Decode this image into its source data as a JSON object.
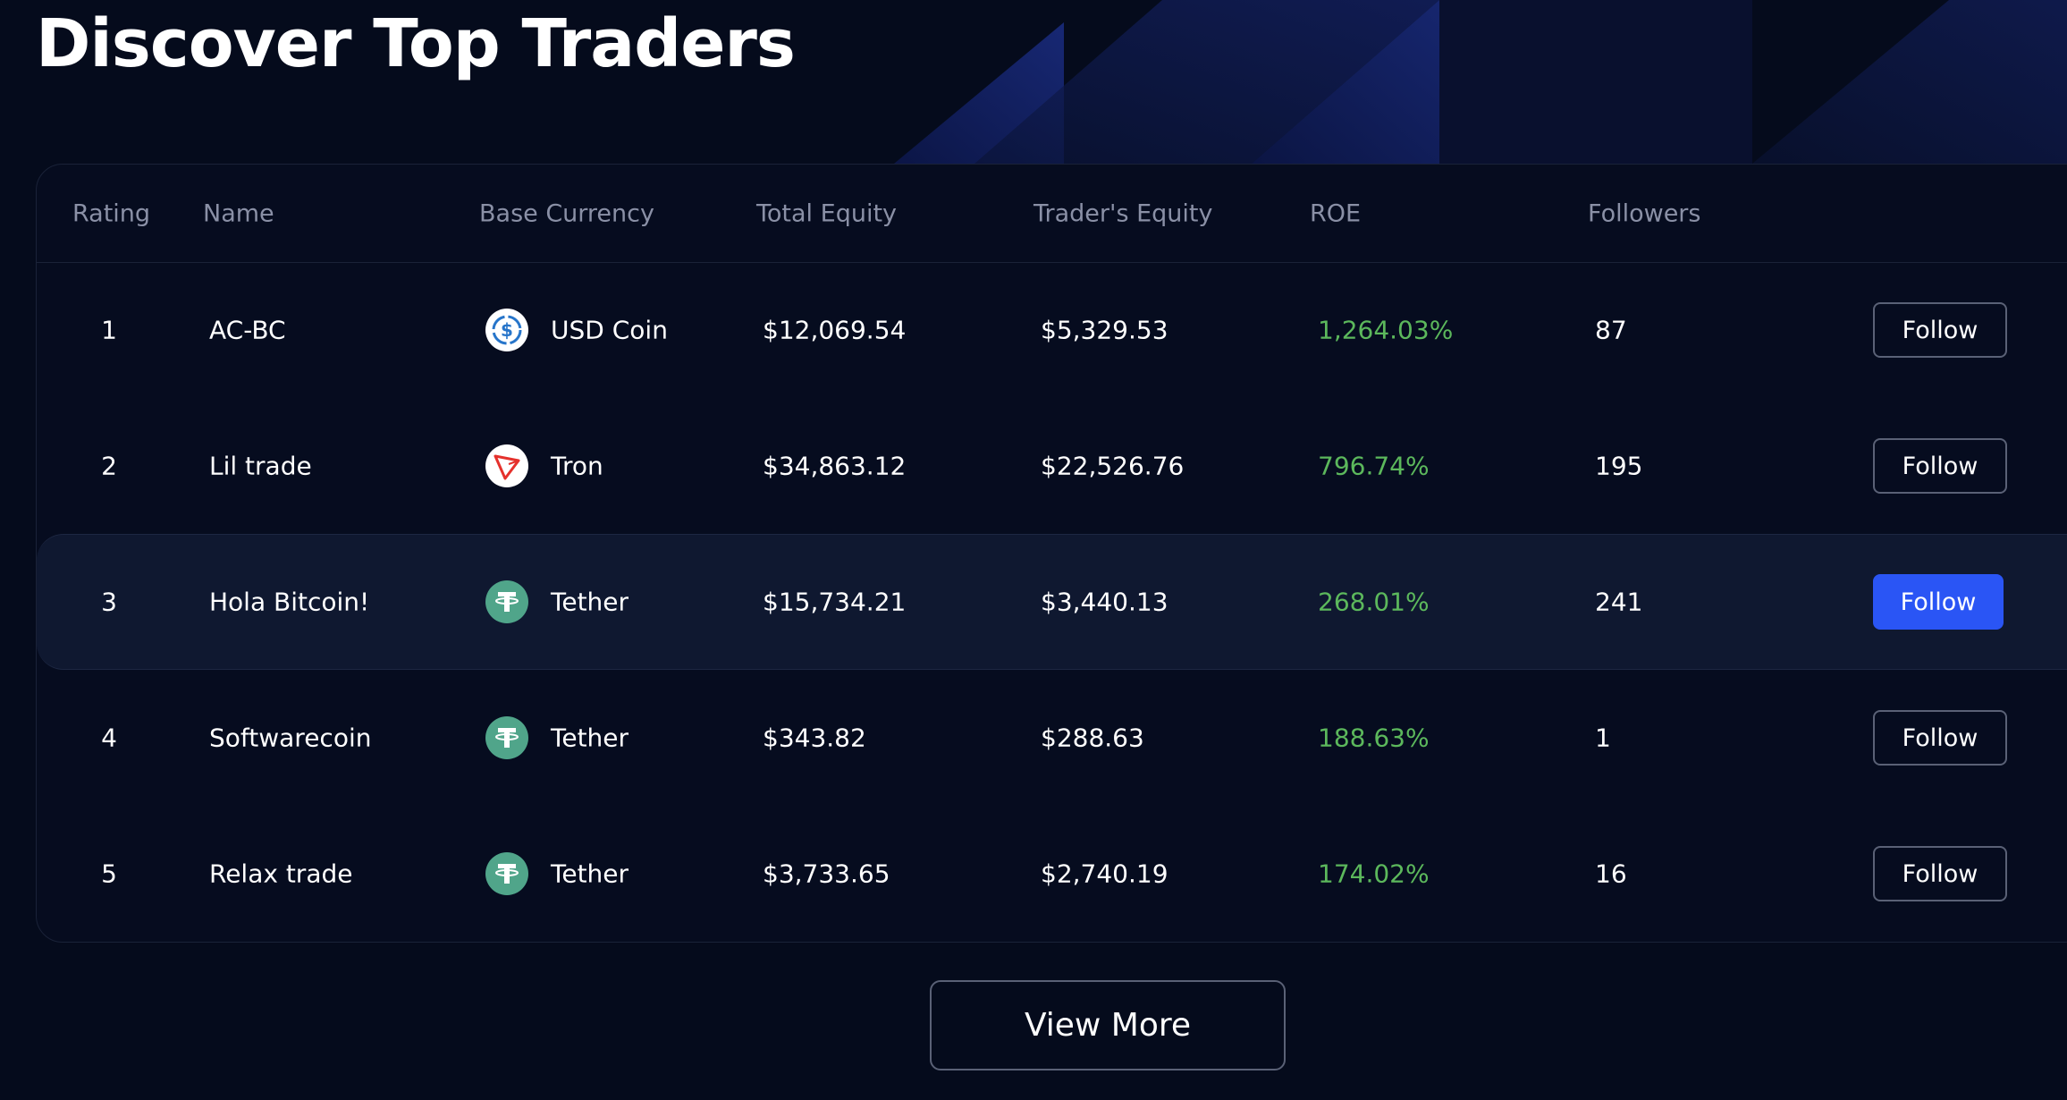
{
  "header": {
    "title": "Discover Top Traders"
  },
  "table": {
    "columns": [
      "Rating",
      "Name",
      "Base Currency",
      "Total Equity",
      "Trader's Equity",
      "ROE",
      "Followers"
    ],
    "rows": [
      [
        "1",
        "AC-BC",
        "USD Coin",
        "$12,069.54",
        "$5,329.53",
        "1,264.03%",
        "87",
        "Follow"
      ],
      [
        "2",
        "Lil trade",
        "Tron",
        "$34,863.12",
        "$22,526.76",
        "796.74%",
        "195",
        "Follow"
      ],
      [
        "3",
        "Hola Bitcoin!",
        "Tether",
        "$15,734.21",
        "$3,440.13",
        "268.01%",
        "241",
        "Follow"
      ],
      [
        "4",
        "Softwarecoin",
        "Tether",
        "$343.82",
        "$288.63",
        "188.63%",
        "1",
        "Follow"
      ],
      [
        "5",
        "Relax trade",
        "Tether",
        "$3,733.65",
        "$2,740.19",
        "174.02%",
        "16",
        "Follow"
      ]
    ]
  },
  "footer": {
    "button": "View More"
  }
}
